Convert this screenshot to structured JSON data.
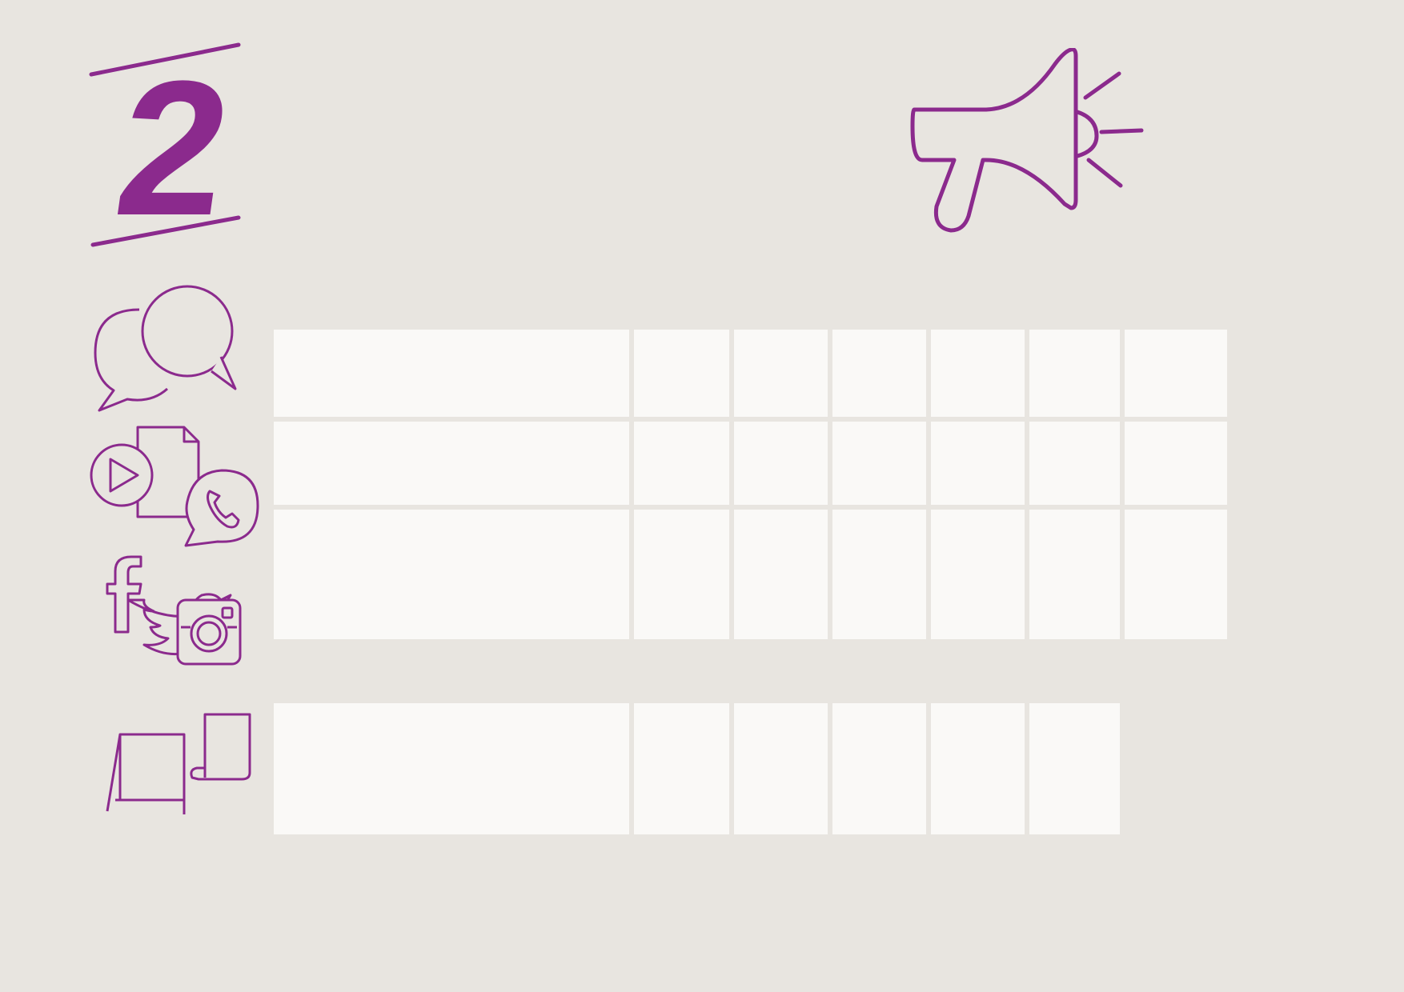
{
  "section": {
    "number": "2",
    "title_line1": "",
    "title_line2": ""
  },
  "colors": {
    "blue": "#0e5aa7",
    "purple": "#8b2a8d",
    "background": "#e8e5e0",
    "cell": "#faf9f7"
  },
  "table1": {
    "headers": [
      "",
      "",
      "",
      "",
      "",
      ""
    ],
    "rows": [
      {
        "question": ""
      },
      {
        "question": ""
      },
      {
        "question": ""
      }
    ]
  },
  "table2": {
    "headers": [
      "",
      "",
      "",
      ""
    ],
    "rows": [
      {
        "question": ""
      }
    ]
  },
  "sidebar": {
    "part1": "",
    "part2": ""
  },
  "icons": [
    "megaphone-icon",
    "speech-bubbles-icon",
    "media-files-icon",
    "social-media-icon",
    "signage-icon"
  ]
}
